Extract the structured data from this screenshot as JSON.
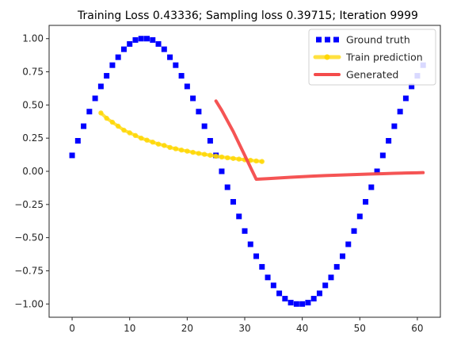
{
  "chart_data": {
    "type": "line",
    "title": "Training Loss 0.43336;  Sampling loss 0.39715; Iteration 9999",
    "xlabel": "",
    "ylabel": "",
    "xlim": [
      -4,
      64
    ],
    "ylim": [
      -1.1,
      1.1
    ],
    "xticks": [
      0,
      10,
      20,
      30,
      40,
      50,
      60
    ],
    "xtick_labels": [
      "0",
      "10",
      "20",
      "30",
      "40",
      "50",
      "60"
    ],
    "yticks": [
      -1.0,
      -0.75,
      -0.5,
      -0.25,
      0.0,
      0.25,
      0.5,
      0.75,
      1.0
    ],
    "ytick_labels": [
      "−1.00",
      "−0.75",
      "−0.50",
      "−0.25",
      "0.00",
      "0.25",
      "0.50",
      "0.75",
      "1.00"
    ],
    "grid": false,
    "legend_position": "top-right",
    "series": [
      {
        "name": "Ground truth",
        "style": "dotted",
        "color": "#0000ff",
        "x": [
          0,
          1,
          2,
          3,
          4,
          5,
          6,
          7,
          8,
          9,
          10,
          11,
          12,
          13,
          14,
          15,
          16,
          17,
          18,
          19,
          20,
          21,
          22,
          23,
          24,
          25,
          26,
          27,
          28,
          29,
          30,
          31,
          32,
          33,
          34,
          35,
          36,
          37,
          38,
          39,
          40,
          41,
          42,
          43,
          44,
          45,
          46,
          47,
          48,
          49,
          50,
          51,
          52,
          53,
          54,
          55,
          56,
          57,
          58,
          59,
          60,
          61
        ],
        "y": [
          0.12,
          0.23,
          0.34,
          0.45,
          0.55,
          0.64,
          0.72,
          0.8,
          0.86,
          0.92,
          0.96,
          0.99,
          1.0,
          1.0,
          0.99,
          0.96,
          0.92,
          0.86,
          0.8,
          0.72,
          0.64,
          0.55,
          0.45,
          0.34,
          0.23,
          0.12,
          0.0,
          -0.12,
          -0.23,
          -0.34,
          -0.45,
          -0.55,
          -0.64,
          -0.72,
          -0.8,
          -0.86,
          -0.92,
          -0.96,
          -0.99,
          -1.0,
          -1.0,
          -0.99,
          -0.96,
          -0.92,
          -0.86,
          -0.8,
          -0.72,
          -0.64,
          -0.55,
          -0.45,
          -0.34,
          -0.23,
          -0.12,
          0.0,
          0.12,
          0.23,
          0.34,
          0.45,
          0.55,
          0.64,
          0.72,
          0.8
        ]
      },
      {
        "name": "Train prediction",
        "style": "solid-markers",
        "color": "#ffd700",
        "x": [
          5,
          6,
          7,
          8,
          9,
          10,
          11,
          12,
          13,
          14,
          15,
          16,
          17,
          18,
          19,
          20,
          21,
          22,
          23,
          24,
          25,
          26,
          27,
          28,
          29,
          30,
          31,
          32,
          33
        ],
        "y": [
          0.44,
          0.4,
          0.37,
          0.34,
          0.31,
          0.29,
          0.27,
          0.25,
          0.235,
          0.22,
          0.205,
          0.195,
          0.18,
          0.17,
          0.16,
          0.152,
          0.143,
          0.135,
          0.128,
          0.121,
          0.114,
          0.108,
          0.102,
          0.097,
          0.092,
          0.087,
          0.083,
          0.078,
          0.074
        ]
      },
      {
        "name": "Generated",
        "style": "solid",
        "color": "#f44b4b",
        "x": [
          25,
          26,
          27,
          28,
          29,
          30,
          31,
          32,
          34,
          36,
          38,
          40,
          42,
          44,
          46,
          48,
          50,
          52,
          54,
          56,
          58,
          60,
          61
        ],
        "y": [
          0.53,
          0.46,
          0.38,
          0.3,
          0.21,
          0.12,
          0.03,
          -0.06,
          -0.055,
          -0.05,
          -0.045,
          -0.04,
          -0.036,
          -0.032,
          -0.029,
          -0.026,
          -0.023,
          -0.02,
          -0.018,
          -0.015,
          -0.013,
          -0.011,
          -0.01
        ]
      }
    ]
  }
}
